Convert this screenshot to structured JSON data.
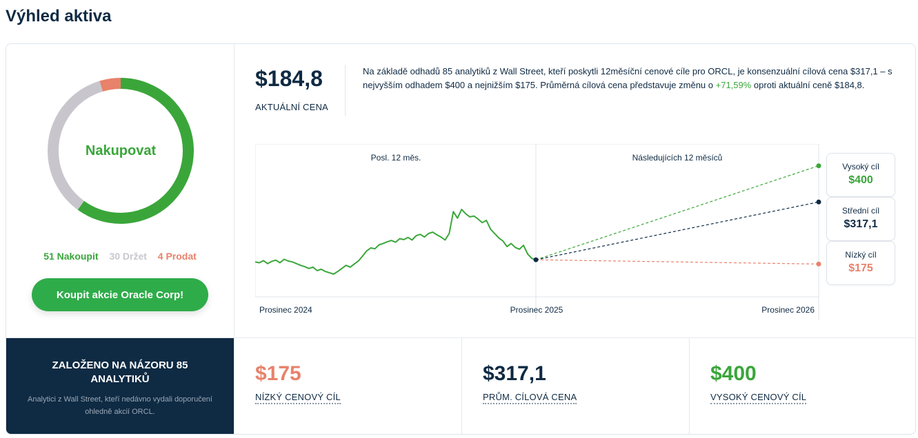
{
  "page": {
    "title": "Výhled aktiva"
  },
  "rating": {
    "label": "Nakupovat",
    "buy_text": "51 Nakoupit",
    "hold_text": "30 Držet",
    "sell_text": "4 Prodat",
    "buy": 51,
    "hold": 30,
    "sell": 4,
    "colors": {
      "buy": "#3aa63a",
      "hold": "#c8c6cc",
      "sell": "#e8826a"
    }
  },
  "cta": {
    "label": "Koupit akcie Oracle Corp!"
  },
  "price": {
    "value": "$184,8",
    "label": "AKTUÁLNÍ CENA"
  },
  "summary": {
    "text_before": "Na základě odhadů 85 analytiků z Wall Street, kteří poskytli 12měsíční cenové cíle pro ORCL, je konsenzuální cílová cena $317,1 – s nejvyšším odhadem $400 a nejnižším $175. Průměrná cílová cena představuje změnu o ",
    "pct": "+71,59%",
    "text_after": " oproti aktuální ceně $184,8."
  },
  "chart_data": {
    "type": "line",
    "section_labels": [
      "Posl. 12 měs.",
      "Následujících 12 měsíců"
    ],
    "x_labels": [
      "Prosinec 2024",
      "Prosinec 2025",
      "Prosinec 2026"
    ],
    "history": [
      180,
      178,
      183,
      176,
      181,
      184,
      178,
      186,
      182,
      180,
      176,
      172,
      169,
      165,
      168,
      160,
      163,
      158,
      155,
      152,
      158,
      165,
      172,
      168,
      175,
      182,
      193,
      205,
      212,
      210,
      219,
      222,
      226,
      229,
      225,
      233,
      231,
      236,
      230,
      240,
      243,
      237,
      245,
      248,
      242,
      237,
      230,
      245,
      295,
      280,
      300,
      290,
      283,
      285,
      278,
      270,
      275,
      255,
      245,
      235,
      228,
      215,
      222,
      213,
      209,
      218,
      198,
      188,
      184.8
    ],
    "current": 184.8,
    "targets": {
      "high": 400,
      "average": 317.1,
      "low": 175
    },
    "ylim": [
      100,
      450
    ],
    "colors": {
      "history": "#3aa63a",
      "high": "#3aa63a",
      "average": "#0f2a43",
      "low": "#e8826a"
    }
  },
  "targets_box": {
    "high": {
      "label": "Vysoký cíl",
      "value": "$400"
    },
    "average": {
      "label": "Střední cíl",
      "value": "$317,1"
    },
    "low": {
      "label": "Nízký cíl",
      "value": "$175"
    }
  },
  "basis": {
    "title": "ZALOŽENO NA NÁZORU 85 ANALYTIKŮ",
    "subtitle": "Analytici z Wall Street, kteří nedávno vydali doporučení ohledně akcií ORCL."
  },
  "stats": {
    "low": {
      "value": "$175",
      "label": "NÍZKÝ CENOVÝ CÍL"
    },
    "average": {
      "value": "$317,1",
      "label": "PRŮM. CÍLOVÁ CENA"
    },
    "high": {
      "value": "$400",
      "label": "VYSOKÝ CENOVÝ CÍL"
    }
  }
}
